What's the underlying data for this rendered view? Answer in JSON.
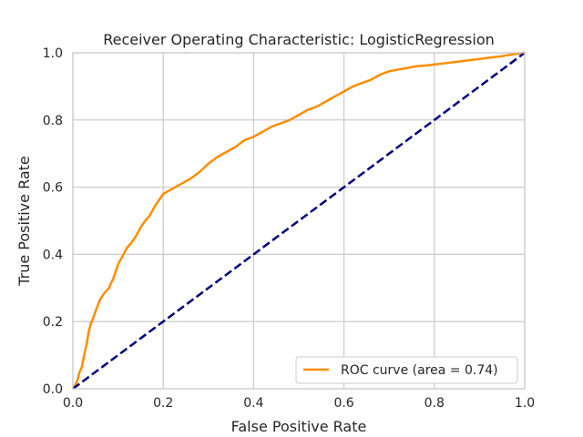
{
  "chart_data": {
    "type": "line",
    "title": "Receiver Operating Characteristic: LogisticRegression",
    "xlabel": "False Positive Rate",
    "ylabel": "True Positive Rate",
    "xlim": [
      0.0,
      1.0
    ],
    "ylim": [
      0.0,
      1.0
    ],
    "xticks": [
      "0.0",
      "0.2",
      "0.4",
      "0.6",
      "0.8",
      "1.0"
    ],
    "yticks": [
      "0.0",
      "0.2",
      "0.4",
      "0.6",
      "0.8",
      "1.0"
    ],
    "grid": true,
    "legend_position": "lower-right",
    "series": [
      {
        "name": "ROC curve (area = 0.74)",
        "color": "#ff8c00",
        "style": "solid",
        "x": [
          0.0,
          0.005,
          0.01,
          0.015,
          0.02,
          0.025,
          0.03,
          0.035,
          0.04,
          0.045,
          0.05,
          0.06,
          0.07,
          0.08,
          0.09,
          0.1,
          0.11,
          0.12,
          0.13,
          0.14,
          0.15,
          0.16,
          0.17,
          0.18,
          0.19,
          0.2,
          0.22,
          0.24,
          0.26,
          0.28,
          0.3,
          0.32,
          0.34,
          0.36,
          0.38,
          0.4,
          0.42,
          0.44,
          0.46,
          0.48,
          0.5,
          0.52,
          0.54,
          0.56,
          0.58,
          0.6,
          0.62,
          0.64,
          0.66,
          0.68,
          0.7,
          0.72,
          0.74,
          0.76,
          0.78,
          0.8,
          0.83,
          0.86,
          0.89,
          0.92,
          0.95,
          0.98,
          1.0
        ],
        "y": [
          0.0,
          0.01,
          0.025,
          0.05,
          0.065,
          0.1,
          0.13,
          0.17,
          0.195,
          0.21,
          0.23,
          0.265,
          0.285,
          0.3,
          0.33,
          0.37,
          0.395,
          0.42,
          0.435,
          0.455,
          0.48,
          0.5,
          0.515,
          0.54,
          0.56,
          0.58,
          0.595,
          0.61,
          0.625,
          0.645,
          0.67,
          0.69,
          0.705,
          0.72,
          0.74,
          0.75,
          0.765,
          0.78,
          0.79,
          0.8,
          0.815,
          0.83,
          0.84,
          0.855,
          0.87,
          0.885,
          0.9,
          0.91,
          0.92,
          0.935,
          0.945,
          0.95,
          0.955,
          0.96,
          0.962,
          0.965,
          0.97,
          0.975,
          0.98,
          0.985,
          0.99,
          0.997,
          1.0
        ]
      },
      {
        "color": "#000080",
        "style": "dashed",
        "x": [
          0.0,
          1.0
        ],
        "y": [
          0.0,
          1.0
        ]
      }
    ]
  }
}
